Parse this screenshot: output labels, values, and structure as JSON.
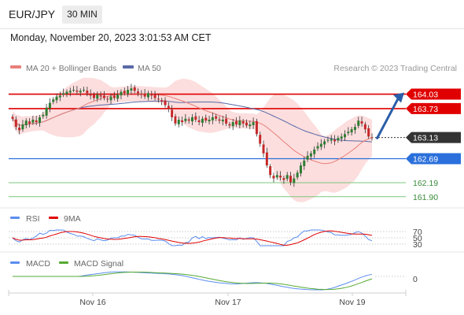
{
  "header": {
    "symbol": "EUR/JPY",
    "timeframe": "30 MIN",
    "timestamp": "Monday, November 20, 2023 3:01:53 AM CET"
  },
  "legend": {
    "ma20_label": "MA 20 + Bollinger Bands",
    "ma50_label": "MA 50",
    "credit": "Research © 2023 Trading Central"
  },
  "colors": {
    "up": "#2e7d32",
    "down": "#c62828",
    "ma20": "#e8807a",
    "band_fill": "#fbd3d3",
    "ma50": "#5a6aa8",
    "resistance": "#e00000",
    "pivot": "#2a6fdb",
    "support": "#7cc77c",
    "current": "#333333",
    "arrow": "#2a5ea8",
    "rsi": "#5b8def",
    "rsi_ma": "#e00000",
    "macd": "#5b8def",
    "macd_signal": "#55aa33"
  },
  "chart_data": {
    "type": "candlestick",
    "x_ticks": [
      "Nov 16",
      "Nov 17",
      "Nov 19"
    ],
    "ylim": [
      161.7,
      164.35
    ],
    "closes": [
      163.52,
      163.35,
      163.28,
      163.4,
      163.48,
      163.42,
      163.5,
      163.45,
      163.55,
      163.6,
      163.75,
      163.85,
      163.92,
      163.98,
      164.0,
      164.05,
      164.08,
      164.1,
      164.12,
      164.08,
      164.1,
      164.12,
      164.05,
      164.0,
      163.95,
      164.02,
      163.98,
      163.95,
      163.92,
      163.98,
      163.95,
      164.02,
      164.08,
      164.05,
      164.12,
      164.15,
      164.1,
      164.05,
      164.02,
      163.98,
      164.05,
      164.0,
      163.95,
      163.92,
      163.88,
      163.8,
      163.72,
      163.55,
      163.42,
      163.5,
      163.45,
      163.52,
      163.48,
      163.55,
      163.5,
      163.45,
      163.52,
      163.48,
      163.5,
      163.55,
      163.52,
      163.48,
      163.5,
      163.42,
      163.38,
      163.45,
      163.4,
      163.48,
      163.42,
      163.38,
      163.4,
      163.45,
      163.2,
      163.0,
      162.8,
      162.55,
      162.35,
      162.28,
      162.35,
      162.3,
      162.25,
      162.35,
      162.2,
      162.28,
      162.4,
      162.55,
      162.65,
      162.75,
      162.8,
      162.88,
      162.95,
      163.0,
      163.05,
      163.08,
      163.1,
      163.05,
      163.12,
      163.15,
      163.2,
      163.25,
      163.3,
      163.35,
      163.48,
      163.42,
      163.3,
      163.15,
      163.13
    ],
    "resistance_levels": [
      164.03,
      163.73
    ],
    "pivot": 162.69,
    "support_levels": [
      162.19,
      161.9
    ],
    "current_price": 163.13,
    "target_price": 164.03,
    "rsi": {
      "name": "RSI",
      "ma_name": "9MA",
      "levels": [
        70,
        50,
        30
      ],
      "level_labels": [
        "70",
        "50",
        "30"
      ]
    },
    "macd": {
      "name": "MACD",
      "signal_name": "MACD Signal",
      "zero_label": "0"
    }
  }
}
